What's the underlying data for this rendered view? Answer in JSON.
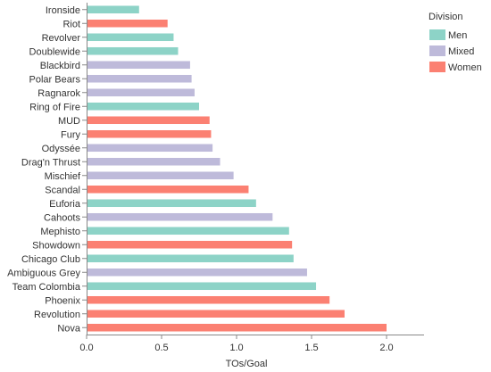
{
  "chart_data": {
    "type": "bar",
    "orientation": "horizontal",
    "xlabel": "TOs/Goal",
    "ylabel": "",
    "xlim": [
      0,
      2.25
    ],
    "xticks": [
      "0.0",
      "0.5",
      "1.0",
      "1.5",
      "2.0"
    ],
    "grid": false,
    "legend": {
      "title": "Division",
      "placement": "top-right",
      "entries": [
        {
          "name": "Men",
          "color": "#8dd3c7"
        },
        {
          "name": "Mixed",
          "color": "#bebada"
        },
        {
          "name": "Women",
          "color": "#fb8072"
        }
      ]
    },
    "categories": [
      "Ironside",
      "Riot",
      "Revolver",
      "Doublewide",
      "Blackbird",
      "Polar Bears",
      "Ragnarok",
      "Ring of Fire",
      "MUD",
      "Fury",
      "Odyssée",
      "Drag'n Thrust",
      "Mischief",
      "Scandal",
      "Euforia",
      "Cahoots",
      "Mephisto",
      "Showdown",
      "Chicago Club",
      "Ambiguous Grey",
      "Team Colombia",
      "Phoenix",
      "Revolution",
      "Nova"
    ],
    "values": [
      0.35,
      0.54,
      0.58,
      0.61,
      0.69,
      0.7,
      0.72,
      0.75,
      0.82,
      0.83,
      0.84,
      0.89,
      0.98,
      1.08,
      1.13,
      1.24,
      1.35,
      1.37,
      1.38,
      1.47,
      1.53,
      1.62,
      1.72,
      2.0
    ],
    "divisions": [
      "Men",
      "Women",
      "Men",
      "Men",
      "Mixed",
      "Mixed",
      "Mixed",
      "Men",
      "Women",
      "Women",
      "Mixed",
      "Mixed",
      "Mixed",
      "Women",
      "Men",
      "Mixed",
      "Men",
      "Women",
      "Men",
      "Mixed",
      "Men",
      "Women",
      "Women",
      "Women"
    ]
  }
}
